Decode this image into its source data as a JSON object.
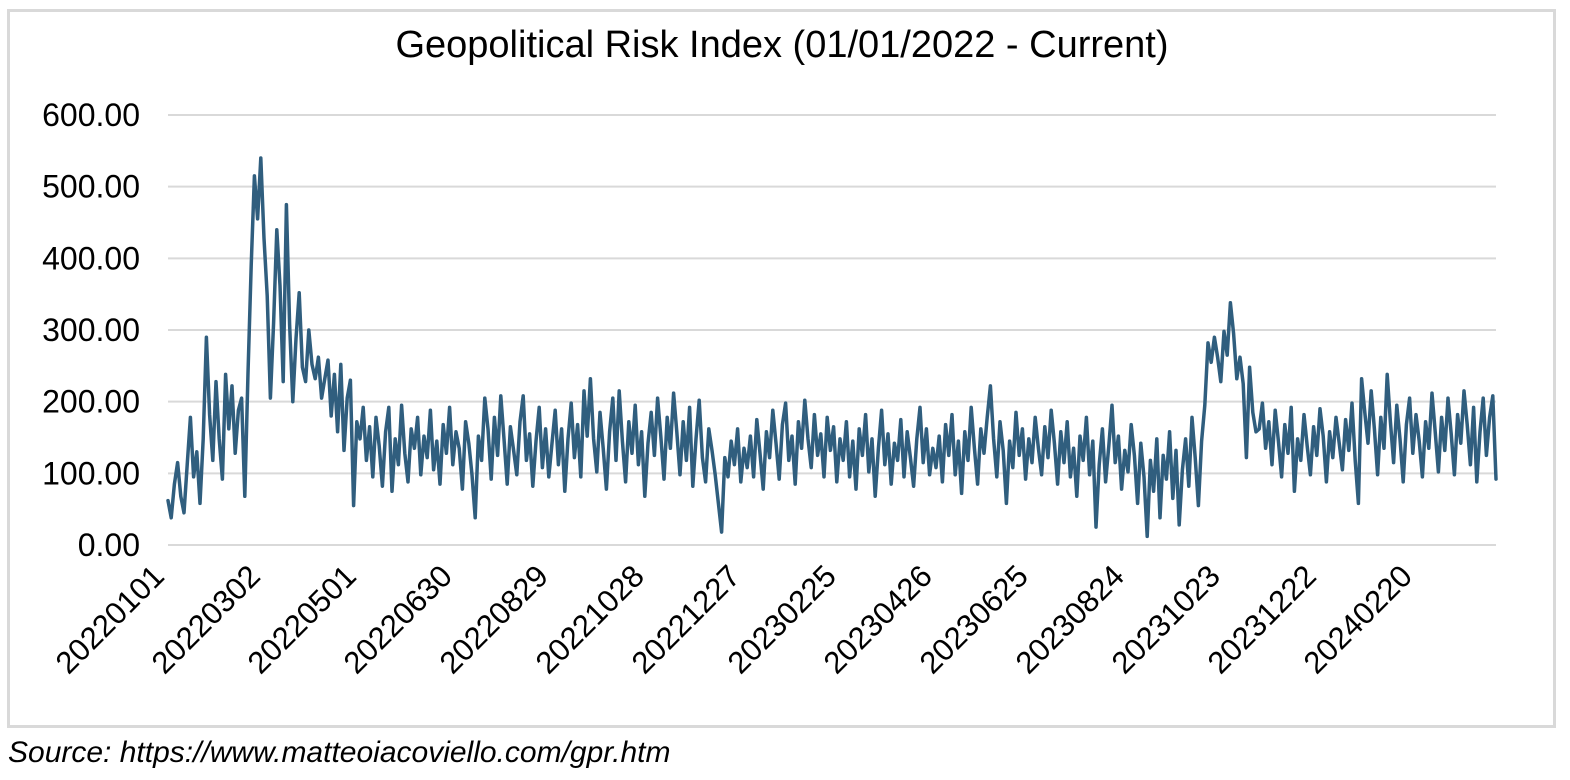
{
  "source_note": "Source: https://www.matteoiacoviello.com/gpr.htm",
  "colors": {
    "line": "#305E7E",
    "grid": "#D9D9D9",
    "frame": "#D9D9D9",
    "text": "#000000"
  },
  "chart_data": {
    "type": "line",
    "title": "Geopolitical Risk Index (01/01/2022 - Current)",
    "xlabel": "",
    "ylabel": "",
    "ylim": [
      0,
      600
    ],
    "y_tick_step": 100,
    "y_tick_labels": [
      "0.00",
      "100.00",
      "200.00",
      "300.00",
      "400.00",
      "500.00",
      "600.00"
    ],
    "x_tick_labels": [
      "20220101",
      "20220302",
      "20220501",
      "20220630",
      "20220829",
      "20221028",
      "20221227",
      "20230225",
      "20230426",
      "20230625",
      "20230824",
      "20231023",
      "20231222",
      "20240220"
    ],
    "x_tick_interval_points": 30,
    "point_spacing_days": 2,
    "grid": "horizontal",
    "legend_position": "none",
    "series": [
      {
        "name": "",
        "values": [
          62,
          38,
          85,
          115,
          68,
          45,
          112,
          178,
          95,
          130,
          58,
          148,
          290,
          182,
          118,
          228,
          148,
          92,
          238,
          162,
          222,
          128,
          188,
          205,
          68,
          240,
          390,
          515,
          455,
          540,
          428,
          348,
          205,
          310,
          440,
          362,
          228,
          475,
          308,
          200,
          288,
          352,
          248,
          228,
          300,
          252,
          232,
          262,
          205,
          232,
          258,
          180,
          238,
          158,
          252,
          132,
          205,
          230,
          55,
          172,
          148,
          192,
          118,
          165,
          95,
          178,
          138,
          82,
          158,
          192,
          75,
          148,
          112,
          195,
          128,
          88,
          162,
          135,
          178,
          98,
          152,
          122,
          188,
          105,
          145,
          85,
          168,
          128,
          192,
          112,
          158,
          135,
          78,
          172,
          142,
          98,
          38,
          152,
          118,
          205,
          162,
          92,
          178,
          125,
          208,
          148,
          85,
          165,
          132,
          98,
          172,
          208,
          118,
          155,
          82,
          145,
          192,
          108,
          162,
          95,
          142,
          188,
          112,
          162,
          75,
          148,
          198,
          122,
          168,
          95,
          215,
          152,
          232,
          148,
          102,
          185,
          135,
          78,
          158,
          205,
          118,
          215,
          145,
          88,
          172,
          128,
          195,
          112,
          158,
          68,
          142,
          185,
          125,
          205,
          152,
          92,
          178,
          135,
          212,
          158,
          98,
          172,
          118,
          192,
          82,
          148,
          202,
          122,
          88,
          162,
          132,
          98,
          58,
          18,
          122,
          95,
          145,
          112,
          162,
          88,
          135,
          108,
          152,
          95,
          175,
          128,
          78,
          158,
          122,
          188,
          142,
          92,
          168,
          198,
          118,
          152,
          85,
          172,
          135,
          202,
          148,
          108,
          182,
          125,
          155,
          95,
          178,
          132,
          165,
          88,
          148,
          118,
          172,
          95,
          145,
          78,
          162,
          125,
          182,
          102,
          148,
          68,
          135,
          188,
          112,
          155,
          85,
          142,
          118,
          175,
          95,
          158,
          122,
          82,
          148,
          192,
          115,
          162,
          98,
          135,
          108,
          152,
          88,
          168,
          125,
          182,
          98,
          145,
          72,
          158,
          118,
          192,
          135,
          85,
          162,
          128,
          178,
          222,
          148,
          95,
          172,
          132,
          58,
          145,
          108,
          185,
          125,
          162,
          92,
          148,
          115,
          178,
          135,
          98,
          165,
          122,
          188,
          142,
          85,
          158,
          115,
          172,
          95,
          135,
          68,
          152,
          118,
          178,
          98,
          145,
          25,
          112,
          162,
          88,
          138,
          195,
          115,
          152,
          78,
          132,
          102,
          168,
          125,
          58,
          142,
          95,
          12,
          118,
          75,
          148,
          38,
          125,
          92,
          158,
          65,
          132,
          28,
          105,
          148,
          82,
          178,
          122,
          55,
          145,
          195,
          282,
          255,
          290,
          262,
          228,
          298,
          265,
          338,
          295,
          232,
          262,
          225,
          122,
          248,
          185,
          158,
          162,
          198,
          135,
          172,
          112,
          188,
          145,
          95,
          168,
          128,
          192,
          75,
          148,
          118,
          182,
          138,
          98,
          165,
          125,
          190,
          152,
          88,
          158,
          122,
          178,
          142,
          105,
          175,
          132,
          198,
          118,
          58,
          232,
          185,
          142,
          215,
          162,
          98,
          178,
          135,
          238,
          172,
          115,
          195,
          148,
          88,
          168,
          205,
          128,
          182,
          145,
          95,
          172,
          135,
          212,
          158,
          102,
          178,
          132,
          205,
          155,
          98,
          182,
          142,
          215,
          168,
          112,
          192,
          88,
          158,
          205,
          125,
          178,
          208,
          92
        ]
      }
    ]
  }
}
